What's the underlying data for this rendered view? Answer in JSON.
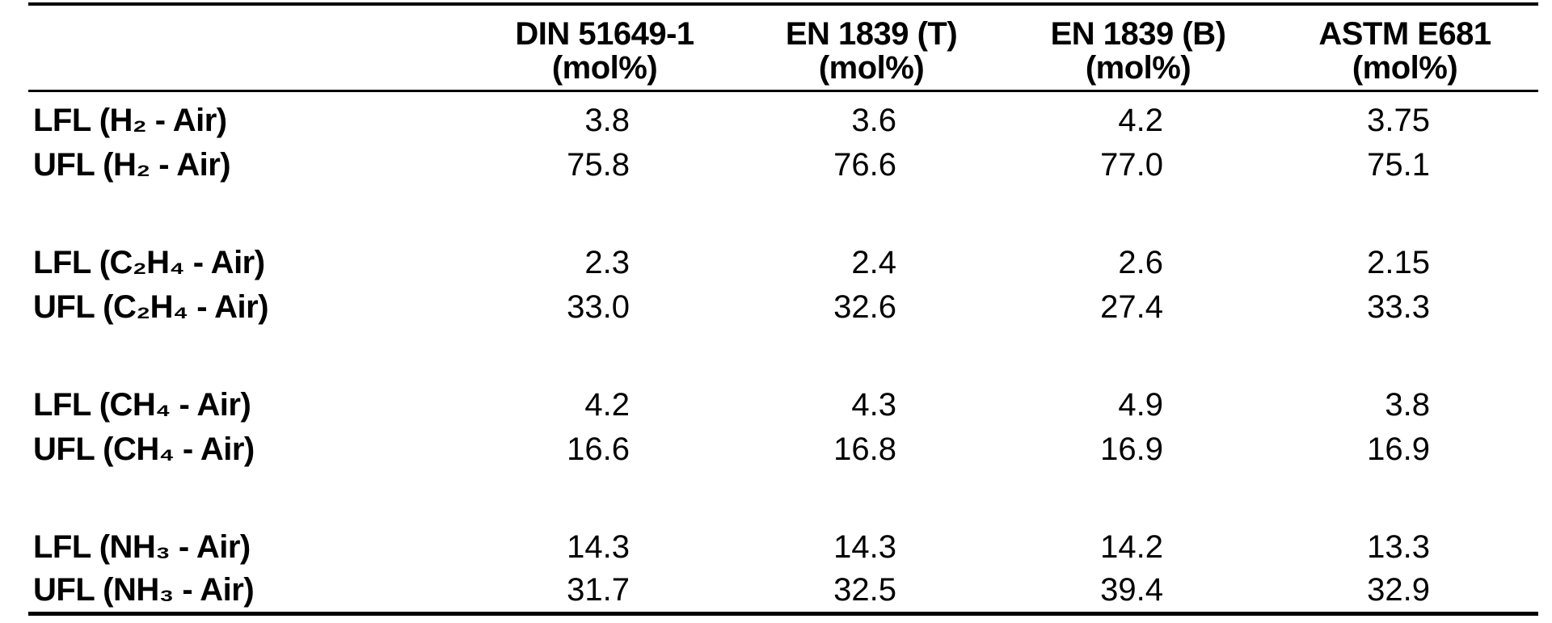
{
  "table": {
    "columns": [
      {
        "standard": "DIN 51649-1",
        "unit": "(mol%)"
      },
      {
        "standard": "EN 1839 (T)",
        "unit": "(mol%)"
      },
      {
        "standard": "EN 1839 (B)",
        "unit": "(mol%)"
      },
      {
        "standard": "ASTM E681",
        "unit": "(mol%)"
      }
    ],
    "rows": [
      {
        "label": "LFL (H₂ - Air)",
        "values": [
          "3.8",
          "3.6",
          "4.2",
          "3.75"
        ]
      },
      {
        "label": "UFL (H₂ - Air)",
        "values": [
          "75.8",
          "76.6",
          "77.0",
          "75.1"
        ]
      },
      {
        "label": "LFL (C₂H₄ - Air)",
        "values": [
          "2.3",
          "2.4",
          "2.6",
          "2.15"
        ]
      },
      {
        "label": "UFL (C₂H₄ - Air)",
        "values": [
          "33.0",
          "32.6",
          "27.4",
          "33.3"
        ]
      },
      {
        "label": "LFL (CH₄ - Air)",
        "values": [
          "4.2",
          "4.3",
          "4.9",
          "3.8"
        ]
      },
      {
        "label": "UFL (CH₄ - Air)",
        "values": [
          "16.6",
          "16.8",
          "16.9",
          "16.9"
        ]
      },
      {
        "label": "LFL (NH₃ - Air)",
        "values": [
          "14.3",
          "14.3",
          "14.2",
          "13.3"
        ]
      },
      {
        "label": "UFL (NH₃ - Air)",
        "values": [
          "31.7",
          "32.5",
          "39.4",
          "32.9"
        ]
      }
    ],
    "colors": {
      "text": "#000000",
      "background": "#ffffff",
      "rule": "#000000"
    }
  }
}
